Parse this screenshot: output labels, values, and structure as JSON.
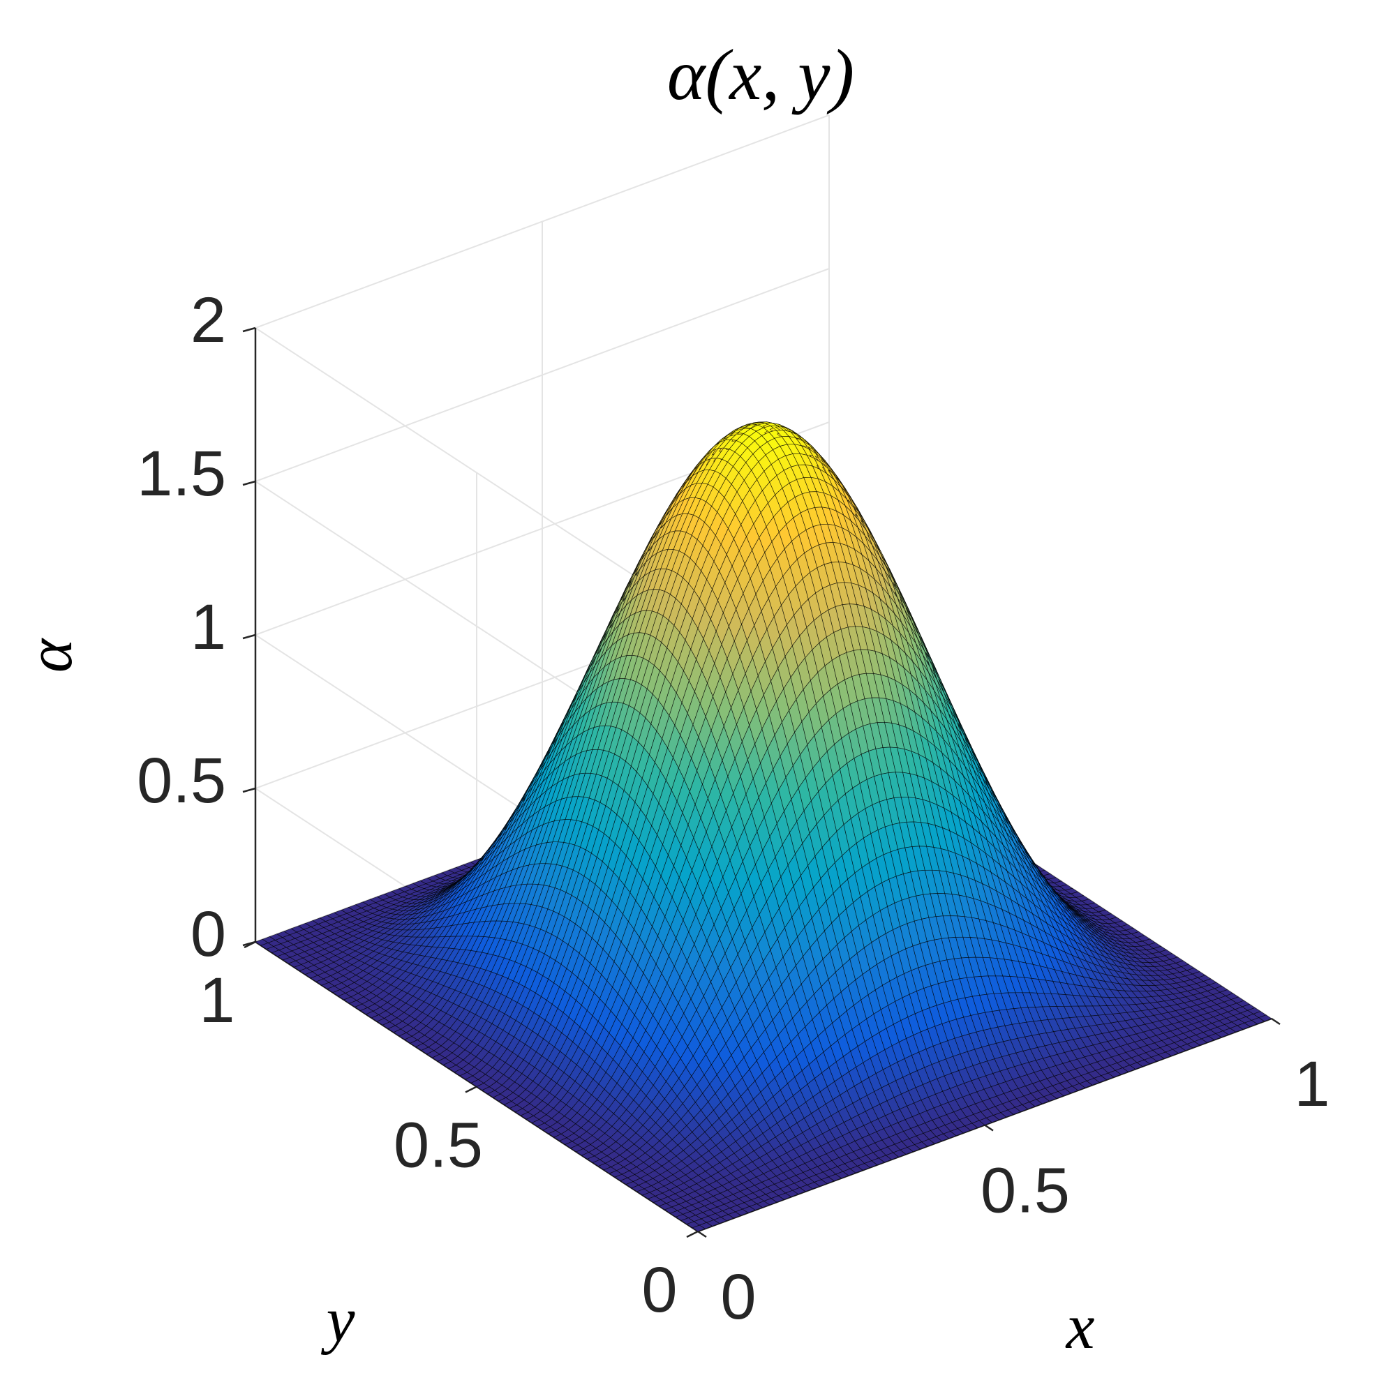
{
  "chart_data": {
    "type": "surface",
    "title": "α(x, y)",
    "xlabel": "x",
    "ylabel": "y",
    "zlabel": "α",
    "xlim": [
      0,
      1
    ],
    "ylim": [
      0,
      1
    ],
    "zlim": [
      0,
      2
    ],
    "x_ticks": [
      "0",
      "0.5",
      "1"
    ],
    "y_ticks": [
      "0",
      "0.5",
      "1"
    ],
    "z_ticks": [
      "0",
      "0.5",
      "1",
      "1.5",
      "2"
    ],
    "x_tick_values": [
      0,
      0.5,
      1
    ],
    "y_tick_values": [
      0,
      0.5,
      1
    ],
    "z_tick_values": [
      0,
      0.5,
      1,
      1.5,
      2
    ],
    "function": "alpha(x,y) = 1.8 * sin(pi*x)^2 * sin(pi*y)^2",
    "peak": {
      "x": 0.5,
      "y": 0.5,
      "z": 1.8
    },
    "boundary_value": 0,
    "grid_resolution": 80,
    "colormap": "parula",
    "colormap_stops": [
      "#352a87",
      "#0f5cdd",
      "#1481d6",
      "#06a4ca",
      "#2eb7a4",
      "#87bf77",
      "#d1bb59",
      "#fec832",
      "#f9fb0e"
    ],
    "edge_color": "#000000",
    "grid": true,
    "box": false,
    "view": {
      "azimuth": -45,
      "elevation": 30
    }
  }
}
